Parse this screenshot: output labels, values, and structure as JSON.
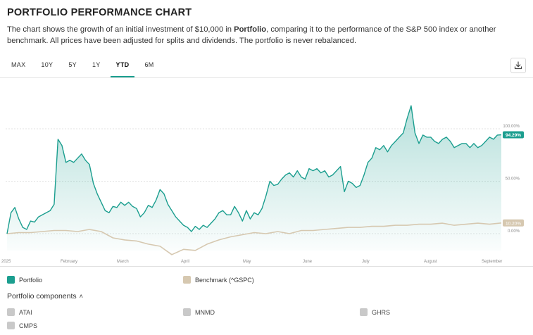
{
  "header": {
    "title": "PORTFOLIO PERFORMANCE CHART",
    "desc_prefix": "The chart shows the growth of an initial investment of $10,000 in ",
    "desc_bold": "Portfolio",
    "desc_suffix": ", comparing it to the performance of the S&P 500 index or another benchmark. All prices have been adjusted for splits and dividends. The portfolio is never rebalanced."
  },
  "tabs": [
    {
      "label": "MAX",
      "active": false
    },
    {
      "label": "10Y",
      "active": false
    },
    {
      "label": "5Y",
      "active": false
    },
    {
      "label": "1Y",
      "active": false
    },
    {
      "label": "YTD",
      "active": true
    },
    {
      "label": "6M",
      "active": false
    }
  ],
  "download_icon": "download-icon",
  "colors": {
    "portfolio": "#1b9e8f",
    "benchmark": "#d6c8b0",
    "grid": "#e3e3e3",
    "active_tab": "#1b9e8f"
  },
  "chart_data": {
    "type": "area",
    "y_unit": "%",
    "ylim": [
      -30,
      130
    ],
    "grid": true,
    "y_ticks": [
      0,
      50,
      100
    ],
    "y_tick_labels": [
      "0.00%",
      "50.00%",
      "100.00%"
    ],
    "x_tick_labels": [
      "2025",
      "February",
      "March",
      "April",
      "May",
      "June",
      "July",
      "August",
      "September"
    ],
    "end_labels": {
      "portfolio": "94.29%",
      "benchmark": "10.20%"
    },
    "series": [
      {
        "name": "Portfolio",
        "color": "#1b9e8f",
        "x": [
          0,
          2,
          4,
          6,
          8,
          10,
          12,
          14,
          16,
          18,
          20,
          22,
          24,
          26,
          28,
          30,
          32,
          34,
          36,
          38,
          40,
          42,
          44,
          46,
          48,
          50,
          52,
          54,
          56,
          58,
          60,
          62,
          64,
          66,
          68,
          70,
          72,
          74,
          76,
          78,
          80,
          82,
          84,
          86,
          88,
          90,
          92,
          94,
          96,
          98,
          100,
          102,
          104,
          106,
          108,
          110,
          112,
          114,
          116,
          118,
          120,
          122,
          124,
          126,
          128,
          130,
          132,
          134,
          136,
          138,
          140,
          142,
          144,
          146,
          148,
          150,
          152,
          154,
          156,
          158,
          160,
          162,
          164,
          166,
          168,
          170,
          172,
          174,
          176,
          178,
          180,
          182,
          184,
          186,
          188,
          190,
          192,
          194,
          196,
          198,
          200,
          202,
          204,
          206,
          208,
          210,
          212,
          214,
          216,
          218,
          220,
          222,
          224,
          226,
          228,
          230,
          232,
          234,
          236,
          238,
          240,
          242,
          244,
          246,
          248,
          250,
          252
        ],
        "values": [
          0,
          20,
          25,
          14,
          6,
          4,
          12,
          11,
          16,
          18,
          20,
          22,
          28,
          90,
          84,
          68,
          70,
          68,
          72,
          76,
          70,
          66,
          48,
          38,
          30,
          22,
          20,
          26,
          25,
          30,
          27,
          30,
          26,
          24,
          16,
          20,
          27,
          25,
          32,
          42,
          38,
          28,
          22,
          16,
          12,
          8,
          6,
          2,
          7,
          4,
          8,
          6,
          10,
          14,
          20,
          22,
          18,
          18,
          26,
          20,
          12,
          22,
          14,
          20,
          18,
          24,
          36,
          50,
          46,
          47,
          52,
          56,
          58,
          54,
          60,
          54,
          52,
          62,
          60,
          62,
          58,
          60,
          54,
          56,
          60,
          64,
          40,
          50,
          48,
          44,
          46,
          56,
          68,
          72,
          82,
          80,
          84,
          78,
          84,
          88,
          92,
          96,
          110,
          122,
          96,
          86,
          94,
          92,
          92,
          88,
          86,
          90,
          92,
          88,
          82,
          84,
          86,
          86,
          82,
          86,
          82,
          84,
          88,
          92,
          90,
          94,
          94.29
        ]
      },
      {
        "name": "Benchmark (^GSPC)",
        "color": "#d6c8b0",
        "x": [
          0,
          6,
          12,
          18,
          24,
          30,
          36,
          42,
          48,
          54,
          60,
          66,
          72,
          78,
          84,
          90,
          96,
          102,
          108,
          114,
          120,
          126,
          132,
          138,
          144,
          150,
          156,
          162,
          168,
          174,
          180,
          186,
          192,
          198,
          204,
          210,
          216,
          222,
          228,
          234,
          240,
          246,
          252
        ],
        "values": [
          0,
          1,
          1,
          2,
          3,
          3,
          2,
          4,
          2,
          -4,
          -6,
          -7,
          -10,
          -12,
          -20,
          -15,
          -16,
          -10,
          -6,
          -3,
          -1,
          1,
          0,
          2,
          0,
          3,
          3,
          4,
          5,
          6,
          6,
          7,
          7,
          8,
          8,
          9,
          9,
          10,
          8,
          9,
          10,
          9,
          10.2
        ]
      }
    ]
  },
  "legend": [
    {
      "label": "Portfolio",
      "color": "#1b9e8f"
    },
    {
      "label": "Benchmark (^GSPC)",
      "color": "#d6c8b0"
    }
  ],
  "components": {
    "title": "Portfolio components",
    "chevron": "˄",
    "items": [
      "ATAI",
      "MNMD",
      "GHRS",
      "CMPS"
    ]
  }
}
